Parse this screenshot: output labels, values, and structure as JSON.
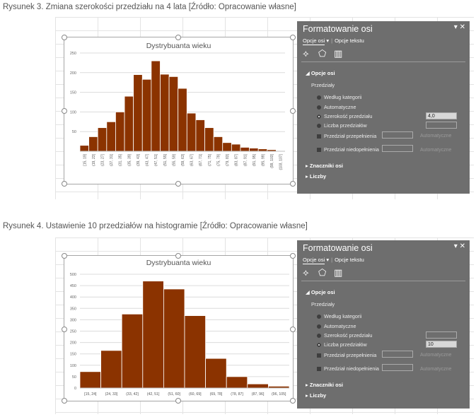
{
  "figures": [
    {
      "caption": "Rysunek 3. Zmiana szerokości przedziału na 4 lata [Źródło: Opracowanie własne]",
      "chart_title": "Dystrybuanta wieku",
      "panel": {
        "title": "Formatowanie osi",
        "tab_axis": "Opcje osi",
        "tab_text": "Opcje tekstu",
        "section_axis": "Opcje osi",
        "group_label": "Przedziały",
        "opt_category": "Według kategorii",
        "opt_auto": "Automatyczne",
        "opt_width": "Szerokość przedziału",
        "opt_count": "Liczba przedziałów",
        "overflow_label": "Przedział przepełnienia",
        "underflow_label": "Przedział niedopełnienia",
        "auto_text": "Automatyczne",
        "width_value": "4,0",
        "count_value": "",
        "section_ticks": "Znaczniki osi",
        "section_numbers": "Liczby"
      }
    },
    {
      "caption": "Rysunek 4. Ustawienie 10 przedziałów na histogramie [Źródło: Opracowanie własne]",
      "chart_title": "Dystrybuanta wieku",
      "panel": {
        "title": "Formatowanie osi",
        "tab_axis": "Opcje osi",
        "tab_text": "Opcje tekstu",
        "section_axis": "Opcje osi",
        "group_label": "Przedziały",
        "opt_category": "Według kategorii",
        "opt_auto": "Automatyczne",
        "opt_width": "Szerokość przedziału",
        "opt_count": "Liczba przedziałów",
        "overflow_label": "Przedział przepełnienia",
        "underflow_label": "Przedział niedopełnienia",
        "auto_text": "Automatyczne",
        "width_value": "",
        "count_value": "10",
        "section_ticks": "Znaczniki osi",
        "section_numbers": "Liczby"
      }
    }
  ],
  "chart_data": [
    {
      "type": "bar",
      "title": "Dystrybuanta wieku",
      "color": "#8b3300",
      "ylim": [
        0,
        250
      ],
      "yticks": [
        50,
        100,
        150,
        200,
        250
      ],
      "categories": [
        "[15, 19]",
        "(19, 23]",
        "(23, 27]",
        "(27, 31]",
        "(31, 35]",
        "(35, 39]",
        "(39, 43]",
        "(43, 47]",
        "(47, 51]",
        "(51, 55]",
        "(55, 59]",
        "(59, 63]",
        "(63, 67]",
        "(67, 71]",
        "(71, 75]",
        "(75, 79]",
        "(79, 83]",
        "(83, 87]",
        "(87, 91]",
        "(91, 95]",
        "(95, 99]",
        "(99, 103]",
        "(103, 107]"
      ],
      "values": [
        15,
        37,
        60,
        75,
        100,
        140,
        195,
        183,
        230,
        196,
        190,
        160,
        97,
        80,
        60,
        37,
        22,
        18,
        10,
        8,
        6,
        4,
        0
      ]
    },
    {
      "type": "bar",
      "title": "Dystrybuanta wieku",
      "color": "#8b3300",
      "ylim": [
        0,
        500
      ],
      "yticks": [
        0,
        50,
        100,
        150,
        200,
        250,
        300,
        350,
        400,
        450,
        500
      ],
      "categories": [
        "[15, 24]",
        "(24, 33]",
        "(33, 42]",
        "(42, 51]",
        "(51, 60]",
        "(60, 69]",
        "(69, 78]",
        "(78, 87]",
        "(87, 96]",
        "(96, 105]"
      ],
      "values": [
        72,
        165,
        325,
        470,
        435,
        318,
        130,
        50,
        18,
        8
      ]
    }
  ]
}
